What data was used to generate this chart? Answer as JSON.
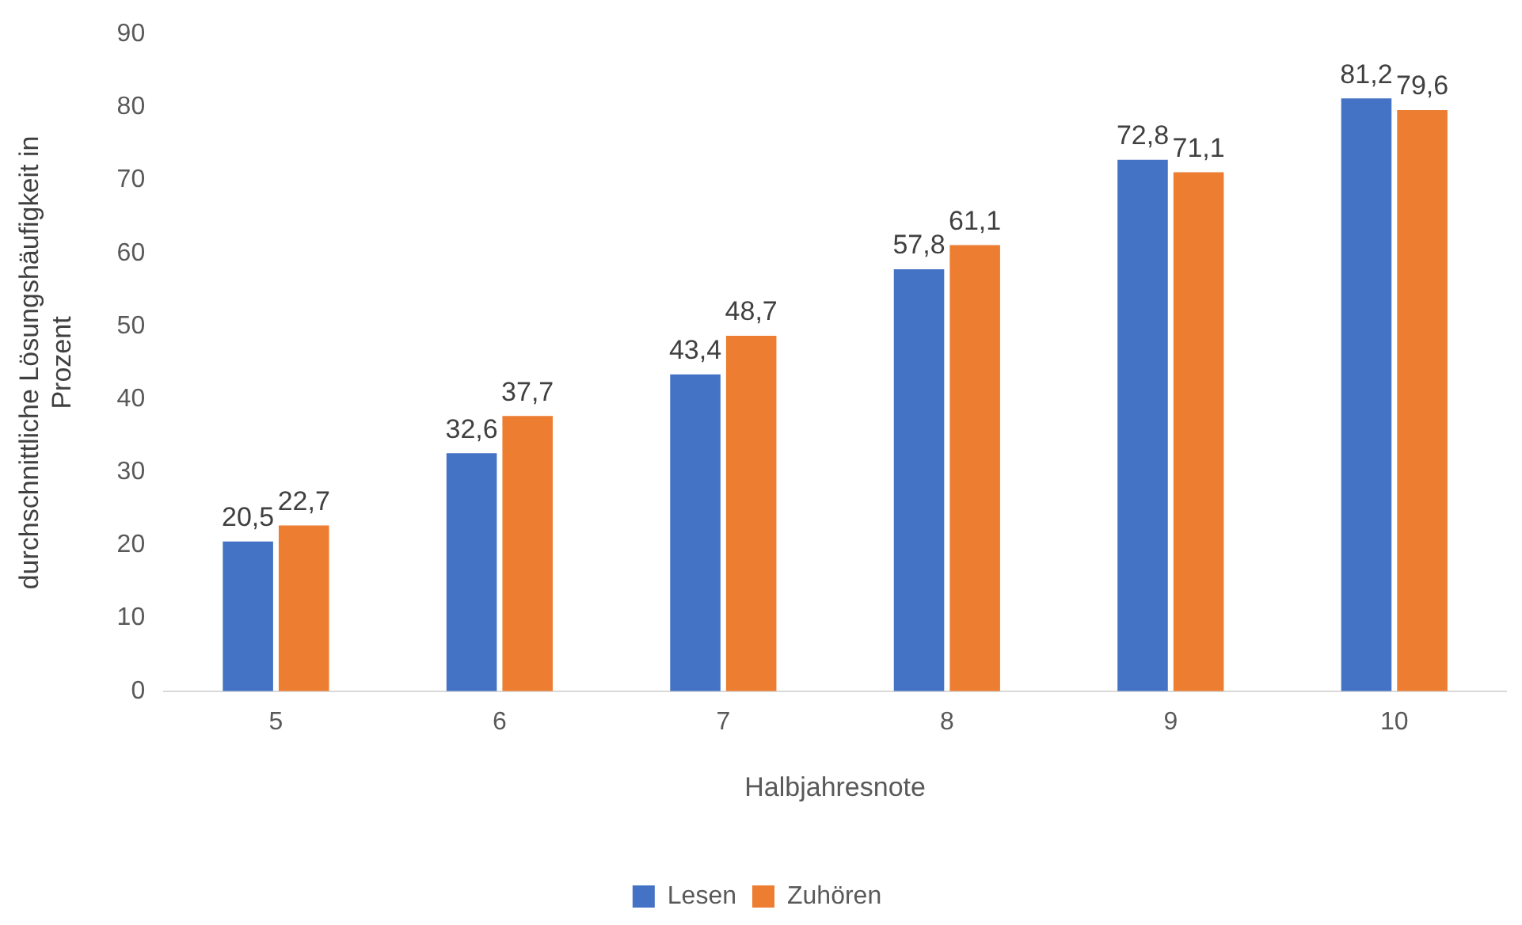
{
  "chart_data": {
    "type": "bar",
    "xlabel": "Halbjahresnote",
    "ylabel": "durchschnittliche Lösungshäufigkeit in Prozent",
    "categories": [
      "5",
      "6",
      "7",
      "8",
      "9",
      "10"
    ],
    "series": [
      {
        "name": "Lesen",
        "color": "#4472c4",
        "values": [
          20.5,
          32.6,
          43.4,
          57.8,
          72.8,
          81.2
        ],
        "value_labels": [
          "20,5",
          "32,6",
          "43,4",
          "57,8",
          "72,8",
          "81,2"
        ]
      },
      {
        "name": "Zuhören",
        "color": "#ed7d31",
        "values": [
          22.7,
          37.7,
          48.7,
          61.1,
          71.1,
          79.6
        ],
        "value_labels": [
          "22,7",
          "37,7",
          "48,7",
          "61,1",
          "71,1",
          "79,6"
        ]
      }
    ],
    "ylim": [
      0,
      90
    ],
    "yticks": [
      0,
      10,
      20,
      30,
      40,
      50,
      60,
      70,
      80,
      90
    ],
    "grid": false,
    "legend": "bottom"
  }
}
